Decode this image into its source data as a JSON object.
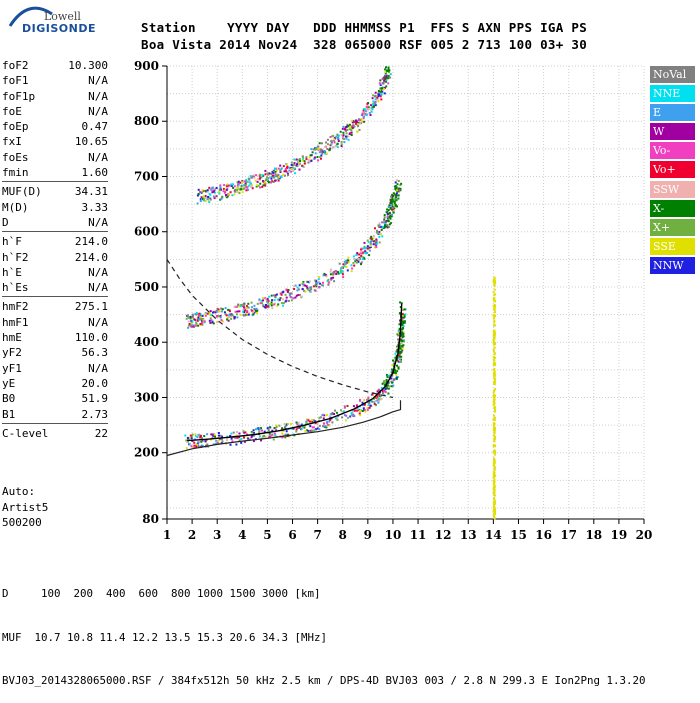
{
  "logo": {
    "line1": "Lowell",
    "line2": "DIGISONDE"
  },
  "header": {
    "line1": "Station    YYYY DAY   DDD HHMMSS P1  FFS S AXN PPS IGA PS",
    "line2": "Boa Vista 2014 Nov24  328 065000 RSF 005 2 713 100 03+ 30"
  },
  "params": [
    {
      "name": "foF2",
      "value": "10.300"
    },
    {
      "name": "foF1",
      "value": "N/A"
    },
    {
      "name": "foF1p",
      "value": "N/A"
    },
    {
      "name": "foE",
      "value": "N/A"
    },
    {
      "name": "foEp",
      "value": "0.47"
    },
    {
      "name": "fxI",
      "value": "10.65"
    },
    {
      "name": "foEs",
      "value": "N/A"
    },
    {
      "name": "fmin",
      "value": "1.60"
    },
    {
      "sep": true
    },
    {
      "name": "MUF(D)",
      "value": "34.31"
    },
    {
      "name": "M(D)",
      "value": "3.33"
    },
    {
      "name": "D",
      "value": "N/A"
    },
    {
      "sep": true
    },
    {
      "name": "h`F",
      "value": "214.0"
    },
    {
      "name": "h`F2",
      "value": "214.0"
    },
    {
      "name": "h`E",
      "value": "N/A"
    },
    {
      "name": "h`Es",
      "value": "N/A"
    },
    {
      "sep": true
    },
    {
      "name": "hmF2",
      "value": "275.1"
    },
    {
      "name": "hmF1",
      "value": "N/A"
    },
    {
      "name": "hmE",
      "value": "110.0"
    },
    {
      "name": "yF2",
      "value": "56.3"
    },
    {
      "name": "yF1",
      "value": "N/A"
    },
    {
      "name": "yE",
      "value": "20.0"
    },
    {
      "name": "B0",
      "value": "51.9"
    },
    {
      "name": "B1",
      "value": "2.73"
    },
    {
      "sep": true
    },
    {
      "name": "C-level",
      "value": "22"
    }
  ],
  "auto": {
    "line1": "Auto:",
    "line2": "Artist5",
    "line3": "500200"
  },
  "legend": [
    {
      "label": "NoVal",
      "color": "#808080"
    },
    {
      "label": "NNE",
      "color": "#00e0f0"
    },
    {
      "label": "E",
      "color": "#40a0f0"
    },
    {
      "label": "W",
      "color": "#a000a0"
    },
    {
      "label": "Vo-",
      "color": "#f040c0"
    },
    {
      "label": "Vo+",
      "color": "#f00030"
    },
    {
      "label": "SSW",
      "color": "#f0b0b0"
    },
    {
      "label": "X-",
      "color": "#008000"
    },
    {
      "label": "X+",
      "color": "#70b040"
    },
    {
      "label": "SSE",
      "color": "#e0e000"
    },
    {
      "label": "NNW",
      "color": "#2020e0"
    }
  ],
  "footer": {
    "line1": "D     100  200  400  600  800 1000 1500 3000 [km]",
    "line2": "MUF  10.7 10.8 11.4 12.2 13.5 15.3 20.6 34.3 [MHz]",
    "line3": "BVJ03_2014328065000.RSF / 384fx512h 50 kHz 2.5 km / DPS-4D BVJ03 003 / 2.8 N 299.3 E Ion2Png 1.3.20"
  },
  "chart_data": {
    "type": "scatter",
    "xlim": [
      1,
      20
    ],
    "ylim": [
      80,
      900
    ],
    "x_ticks": [
      1,
      2,
      3,
      4,
      5,
      6,
      7,
      8,
      9,
      10,
      11,
      12,
      13,
      14,
      15,
      16,
      17,
      18,
      19,
      20
    ],
    "y_ticks": [
      80,
      200,
      300,
      400,
      500,
      600,
      700,
      800,
      900
    ],
    "grid": true,
    "traces": [
      {
        "name": "F2 trace 1st hop",
        "points": [
          [
            1.8,
            222
          ],
          [
            2.5,
            224
          ],
          [
            3.5,
            228
          ],
          [
            4.5,
            233
          ],
          [
            5.5,
            240
          ],
          [
            6.5,
            250
          ],
          [
            7.5,
            262
          ],
          [
            8.5,
            280
          ],
          [
            9.2,
            298
          ],
          [
            9.7,
            320
          ],
          [
            10.0,
            345
          ],
          [
            10.2,
            380
          ],
          [
            10.3,
            420
          ],
          [
            10.35,
            470
          ]
        ]
      },
      {
        "name": "F2 trace 2nd hop",
        "points": [
          [
            1.8,
            440
          ],
          [
            2.5,
            445
          ],
          [
            3.5,
            455
          ],
          [
            4.5,
            466
          ],
          [
            5.5,
            480
          ],
          [
            6.5,
            500
          ],
          [
            7.5,
            520
          ],
          [
            8.5,
            550
          ],
          [
            9.2,
            585
          ],
          [
            9.7,
            620
          ],
          [
            10.0,
            655
          ],
          [
            10.2,
            690
          ]
        ]
      },
      {
        "name": "F2 trace 3rd hop",
        "points": [
          [
            2.2,
            665
          ],
          [
            3.0,
            672
          ],
          [
            4.0,
            686
          ],
          [
            5.0,
            700
          ],
          [
            6.0,
            718
          ],
          [
            7.0,
            745
          ],
          [
            8.0,
            775
          ],
          [
            8.8,
            810
          ],
          [
            9.4,
            850
          ],
          [
            9.8,
            895
          ]
        ]
      },
      {
        "name": "interference column 14 MHz",
        "points": [
          [
            14.0,
            82
          ],
          [
            14.0,
            520
          ]
        ]
      }
    ],
    "profile": {
      "name": "true height profile",
      "points": [
        [
          1.0,
          195
        ],
        [
          2.0,
          207
        ],
        [
          3.0,
          215
        ],
        [
          4.0,
          221
        ],
        [
          5.0,
          226
        ],
        [
          6.0,
          232
        ],
        [
          7.0,
          238
        ],
        [
          8.0,
          246
        ],
        [
          8.8,
          255
        ],
        [
          9.5,
          265
        ],
        [
          10.0,
          274
        ],
        [
          10.3,
          278
        ],
        [
          10.3,
          295
        ]
      ]
    },
    "virtual_height": {
      "name": "calculated virtual height",
      "points": [
        [
          1.0,
          550
        ],
        [
          1.5,
          515
        ],
        [
          2.0,
          485
        ],
        [
          3.0,
          440
        ],
        [
          4.0,
          405
        ],
        [
          5.0,
          378
        ],
        [
          6.0,
          356
        ],
        [
          7.0,
          338
        ],
        [
          8.0,
          323
        ],
        [
          9.0,
          310
        ],
        [
          10.0,
          300
        ]
      ]
    },
    "series_colors": [
      "#00e0f0",
      "#40a0f0",
      "#a000a0",
      "#f040c0",
      "#f00030",
      "#f0b0b0",
      "#008000",
      "#70b040",
      "#e0e000",
      "#2020e0",
      "#808080"
    ]
  }
}
